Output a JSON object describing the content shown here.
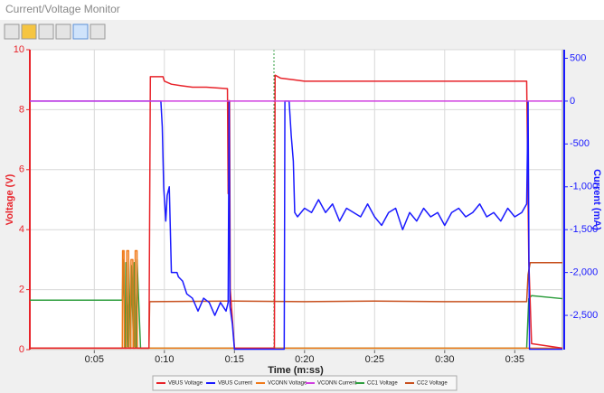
{
  "window": {
    "title": "Current/Voltage Monitor"
  },
  "chart_data": {
    "type": "line",
    "xlabel": "Time (m:ss)",
    "ylabel": "Voltage (V)",
    "y2label": "Current (mA)",
    "xlim": [
      0.4,
      38.4
    ],
    "ylim": [
      0,
      10
    ],
    "y2lim": [
      -2900,
      600
    ],
    "xticks": [
      {
        "value": 5,
        "label": "0:05"
      },
      {
        "value": 10,
        "label": "0:10"
      },
      {
        "value": 15,
        "label": "0:15"
      },
      {
        "value": 20,
        "label": "0:20"
      },
      {
        "value": 25,
        "label": "0:25"
      },
      {
        "value": 30,
        "label": "0:30"
      },
      {
        "value": 35,
        "label": "0:35"
      }
    ],
    "yticks": [
      0,
      2,
      4,
      6,
      8,
      10
    ],
    "y2ticks": [
      500,
      0,
      -500,
      {
        "value": -1000,
        "label": "-1,000"
      },
      {
        "value": -1500,
        "label": "-1,500"
      },
      {
        "value": -2000,
        "label": "-2,000"
      },
      {
        "value": -2500,
        "label": "-2,500"
      }
    ],
    "grid": true,
    "legend": "bottom",
    "series": [
      {
        "name": "VBUS Voltage",
        "color": "#e8232a",
        "x": [
          0.4,
          8.9,
          9.0,
          9.9,
          10.0,
          10.5,
          11.2,
          12.0,
          13.0,
          14.5,
          14.55,
          14.6,
          14.65,
          14.7,
          15.0,
          17.85,
          17.9,
          18.3,
          19.2,
          20.0,
          25.0,
          30.0,
          35.85,
          36.0,
          36.2,
          38.4
        ],
        "values": [
          0.05,
          0.05,
          9.1,
          9.1,
          8.95,
          8.85,
          8.8,
          8.75,
          8.75,
          8.7,
          5.2,
          8.3,
          8.3,
          2.0,
          0.05,
          0.05,
          9.15,
          9.05,
          9.0,
          8.95,
          8.95,
          8.95,
          8.95,
          3.0,
          0.2,
          0.05
        ]
      },
      {
        "name": "VBUS Current",
        "color": "#1a1aff",
        "axis": "y2",
        "x": [
          0.4,
          9.75,
          9.85,
          9.95,
          10.1,
          10.2,
          10.35,
          10.5,
          10.6,
          10.9,
          11.0,
          11.3,
          11.6,
          12.0,
          12.4,
          12.8,
          13.2,
          13.6,
          14.0,
          14.4,
          14.55,
          14.62,
          14.68,
          14.85,
          15.0,
          18.55,
          18.6,
          18.9,
          19.05,
          19.2,
          19.3,
          19.5,
          20.0,
          20.5,
          21.0,
          21.5,
          22.0,
          22.5,
          23.0,
          23.5,
          24.0,
          24.5,
          25.0,
          25.5,
          26.0,
          26.5,
          27.0,
          27.5,
          28.0,
          28.5,
          29.0,
          29.5,
          30.0,
          30.5,
          31.0,
          31.5,
          32.0,
          32.5,
          33.0,
          33.5,
          34.0,
          34.5,
          35.0,
          35.5,
          35.85,
          35.95,
          36.05,
          36.2,
          38.4
        ],
        "values": [
          0,
          0,
          -300,
          -1000,
          -1400,
          -1100,
          -1000,
          -2000,
          -2000,
          -2000,
          -2050,
          -2100,
          -2250,
          -2300,
          -2450,
          -2300,
          -2350,
          -2500,
          -2350,
          -2450,
          -2350,
          0,
          -2400,
          -2600,
          -2895,
          -2895,
          0,
          0,
          -400,
          -700,
          -1300,
          -1350,
          -1250,
          -1300,
          -1150,
          -1300,
          -1200,
          -1400,
          -1250,
          -1300,
          -1350,
          -1200,
          -1350,
          -1450,
          -1300,
          -1250,
          -1500,
          -1300,
          -1400,
          -1250,
          -1350,
          -1300,
          -1450,
          -1300,
          -1250,
          -1350,
          -1300,
          -1200,
          -1350,
          -1300,
          -1400,
          -1250,
          -1350,
          -1300,
          -1200,
          0,
          -2895,
          -2895,
          -2895
        ]
      },
      {
        "name": "VCONN Voltage",
        "color": "#f07a1a",
        "x": [
          0.4,
          7.0,
          7.02,
          7.12,
          7.14,
          7.3,
          7.32,
          7.45,
          7.47,
          7.6,
          7.62,
          7.75,
          7.77,
          7.9,
          7.92,
          8.05,
          8.07,
          8.25,
          8.27,
          38.4
        ],
        "values": [
          0.05,
          0.05,
          3.3,
          3.3,
          0.05,
          0.05,
          3.3,
          3.3,
          0.05,
          0.05,
          3.0,
          3.0,
          0.05,
          0.05,
          3.3,
          3.3,
          0.05,
          0.05,
          0.05,
          0.05
        ]
      },
      {
        "name": "VCONN Current",
        "color": "#d040e0",
        "axis": "y2",
        "x": [
          0.4,
          38.4
        ],
        "values": [
          0,
          0
        ]
      },
      {
        "name": "CC1 Voltage",
        "color": "#2e9e3e",
        "x": [
          0.4,
          7.0,
          7.05,
          7.2,
          7.25,
          7.4,
          7.45,
          7.6,
          7.65,
          7.8,
          7.85,
          8.0,
          8.05,
          8.3,
          35.85,
          36.0,
          36.2,
          38.4
        ],
        "values": [
          1.65,
          1.65,
          3.0,
          0.05,
          2.9,
          0.1,
          3.0,
          0.05,
          2.8,
          0.1,
          2.9,
          0.05,
          3.0,
          0.05,
          0.05,
          1.7,
          1.8,
          1.7
        ]
      },
      {
        "name": "CC2 Voltage",
        "color": "#c8501e",
        "x": [
          0.4,
          8.9,
          8.95,
          15.0,
          20.0,
          25.0,
          30.0,
          35.85,
          35.95,
          36.1,
          38.4
        ],
        "values": [
          0.05,
          0.05,
          1.6,
          1.62,
          1.6,
          1.62,
          1.6,
          1.6,
          2.5,
          2.9,
          2.9
        ]
      }
    ]
  }
}
